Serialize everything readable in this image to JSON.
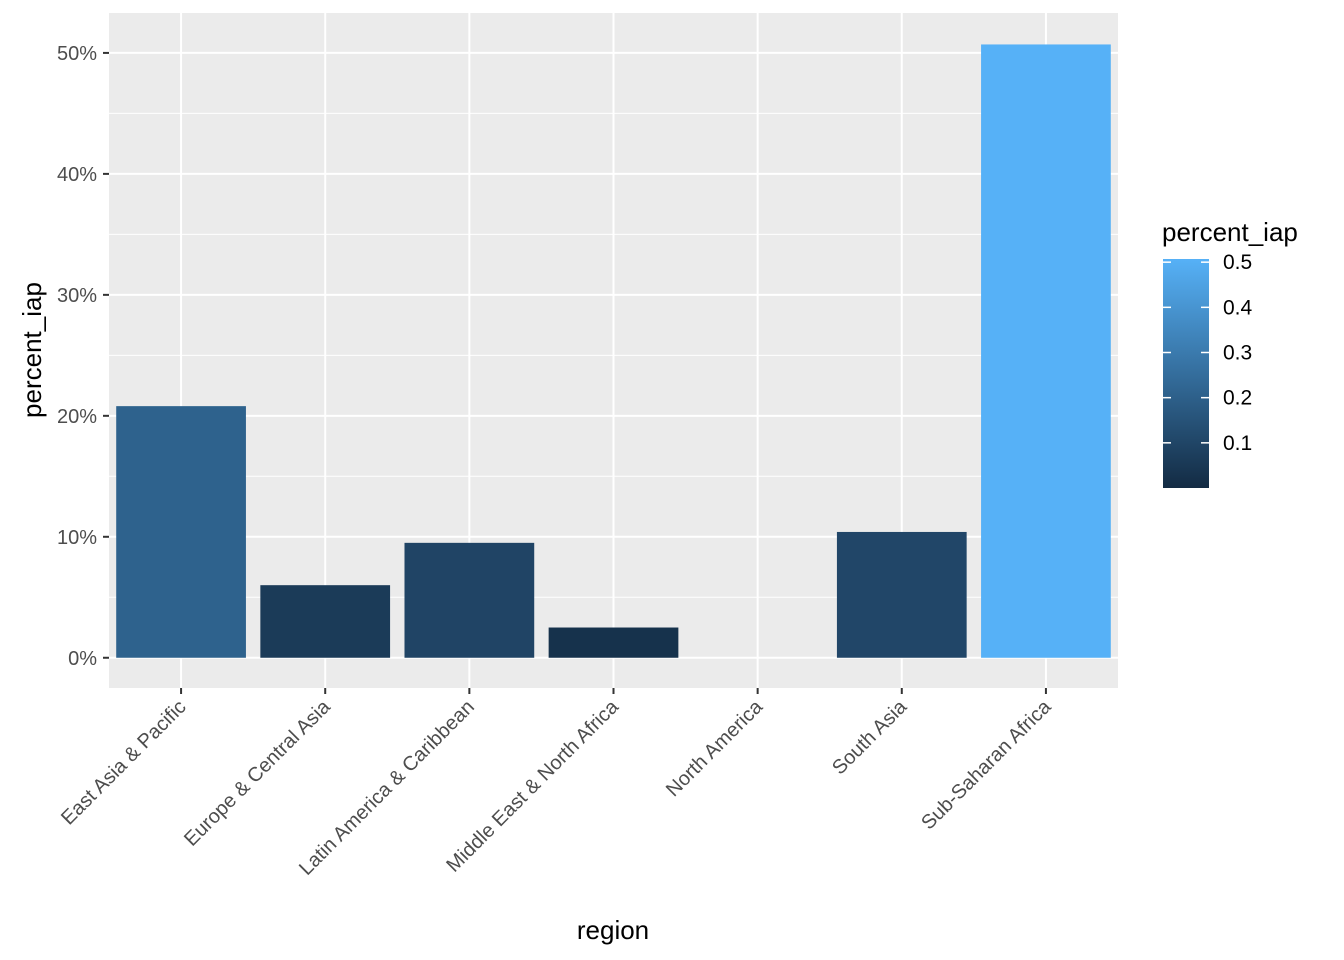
{
  "chart_data": {
    "type": "bar",
    "categories": [
      "East Asia & Pacific",
      "Europe & Central Asia",
      "Latin America & Caribbean",
      "Middle East & North Africa",
      "North America",
      "South Asia",
      "Sub-Saharan Africa"
    ],
    "values": [
      0.208,
      0.06,
      0.095,
      0.025,
      0.0,
      0.104,
      0.507
    ],
    "xlabel": "region",
    "ylabel": "percent_iap",
    "ylim": [
      -0.025,
      0.533
    ],
    "y_ticks": [
      0,
      0.1,
      0.2,
      0.3,
      0.4,
      0.5
    ],
    "y_tick_labels": [
      "0%",
      "10%",
      "20%",
      "30%",
      "40%",
      "50%"
    ],
    "grid": true,
    "legend": {
      "title": "percent_iap",
      "type": "colorbar",
      "placement": "right",
      "range": [
        0.0,
        0.507
      ],
      "ticks": [
        0.1,
        0.2,
        0.3,
        0.4,
        0.5
      ],
      "tick_labels": [
        "0.1",
        "0.2",
        "0.3",
        "0.4",
        "0.5"
      ],
      "color_low": "#132B43",
      "color_high": "#56B1F7"
    },
    "colors": {
      "panel_background": "#EBEBEB",
      "grid_line": "#FFFFFF"
    }
  }
}
